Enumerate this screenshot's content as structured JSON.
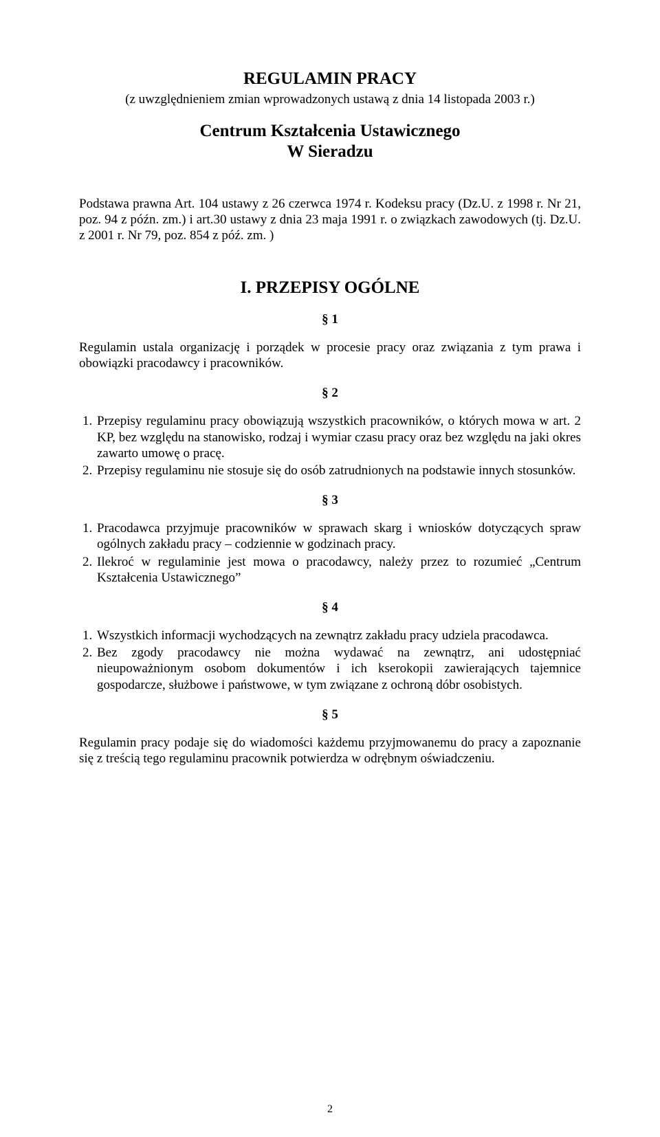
{
  "colors": {
    "text": "#000000",
    "background": "#ffffff"
  },
  "typography": {
    "font_family": "Times New Roman",
    "body_size_pt": 14,
    "heading_size_pt": 18
  },
  "title": "REGULAMIN PRACY",
  "subtitle": "(z uwzględnieniem zmian wprowadzonych ustawą z dnia 14 listopada 2003 r.)",
  "institution_line1": "Centrum Kształcenia Ustawicznego",
  "institution_line2": "W Sieradzu",
  "legal_basis": "Podstawa prawna Art. 104 ustawy z 26 czerwca 1974 r. Kodeksu pracy (Dz.U. z 1998 r. Nr 21, poz. 94 z późn. zm.) i art.30 ustawy z dnia 23 maja 1991 r. o związkach zawodowych (tj. Dz.U. z 2001 r. Nr 79, poz. 854 z póź. zm. )",
  "section_I": {
    "heading": "I.      PRZEPISY OGÓLNE",
    "p1": {
      "label": "§ 1",
      "text": "Regulamin ustala organizację i porządek   w procesie pracy oraz związania z tym prawa i obowiązki pracodawcy i pracowników."
    },
    "p2": {
      "label": "§ 2",
      "items": [
        "Przepisy regulaminu pracy obowiązują wszystkich pracowników, o których mowa w art. 2 KP, bez względu na stanowisko, rodzaj i wymiar czasu pracy oraz bez względu na jaki okres zawarto umowę o pracę.",
        "Przepisy regulaminu nie stosuje się do osób zatrudnionych na podstawie innych stosunków."
      ]
    },
    "p3": {
      "label": "§ 3",
      "items": [
        "Pracodawca przyjmuje pracowników w sprawach skarg i wniosków dotyczących spraw ogólnych zakładu pracy – codziennie w godzinach pracy.",
        "Ilekroć w regulaminie jest mowa o pracodawcy, należy przez to rozumieć „Centrum Kształcenia Ustawicznego”"
      ]
    },
    "p4": {
      "label": "§ 4",
      "items": [
        "Wszystkich informacji wychodzących na zewnątrz zakładu pracy udziela pracodawca.",
        "Bez zgody pracodawcy nie można wydawać na zewnątrz, ani udostępniać nieupoważnionym osobom dokumentów i ich kserokopii zawierających tajemnice gospodarcze, służbowe i państwowe, w tym związane z ochroną dóbr osobistych."
      ]
    },
    "p5": {
      "label": "§ 5",
      "text": "Regulamin pracy podaje się do wiadomości każdemu przyjmowanemu do pracy a zapoznanie się z treścią tego regulaminu pracownik potwierdza w odrębnym oświadczeniu."
    }
  },
  "page_number": "2"
}
